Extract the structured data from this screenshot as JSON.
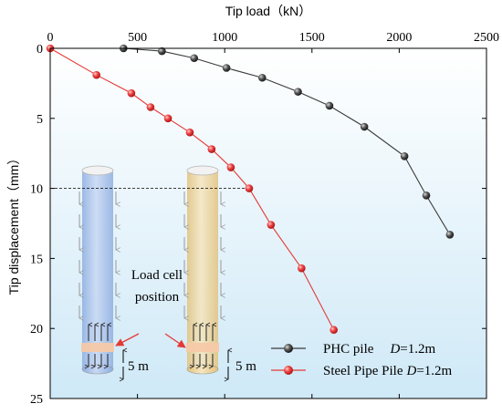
{
  "chart_data": {
    "type": "scatter",
    "title": "",
    "xlabel": "Tip load（kN）",
    "ylabel": "Tip displacement（mm）",
    "xlim": [
      0,
      2500
    ],
    "ylim": [
      0,
      25
    ],
    "x_ticks": [
      0,
      500,
      1000,
      1500,
      2000,
      2500
    ],
    "y_ticks": [
      0,
      5,
      10,
      15,
      20,
      25
    ],
    "x_axis_position": "top",
    "y_inverted": true,
    "grid": false,
    "reference_line_y": 10,
    "legend_position": "bottom-right",
    "series": [
      {
        "name": "PHC pile",
        "name_suffix_symbol": "D",
        "name_suffix_value": "=1.2m",
        "color": "#3a3a3a",
        "points": [
          {
            "x": 420,
            "y": 0.0
          },
          {
            "x": 640,
            "y": 0.2
          },
          {
            "x": 825,
            "y": 0.7
          },
          {
            "x": 1010,
            "y": 1.4
          },
          {
            "x": 1215,
            "y": 2.1
          },
          {
            "x": 1420,
            "y": 3.1
          },
          {
            "x": 1600,
            "y": 4.1
          },
          {
            "x": 1800,
            "y": 5.6
          },
          {
            "x": 2030,
            "y": 7.7
          },
          {
            "x": 2155,
            "y": 10.5
          },
          {
            "x": 2290,
            "y": 13.3
          }
        ]
      },
      {
        "name": "Steel Pipe Pile",
        "name_suffix_symbol": "D",
        "name_suffix_value": "=1.2m",
        "color": "#e53935",
        "points": [
          {
            "x": 0,
            "y": 0.0
          },
          {
            "x": 265,
            "y": 1.9
          },
          {
            "x": 465,
            "y": 3.2
          },
          {
            "x": 575,
            "y": 4.2
          },
          {
            "x": 675,
            "y": 5.0
          },
          {
            "x": 800,
            "y": 6.0
          },
          {
            "x": 925,
            "y": 7.2
          },
          {
            "x": 1035,
            "y": 8.5
          },
          {
            "x": 1140,
            "y": 10.0
          },
          {
            "x": 1265,
            "y": 12.6
          },
          {
            "x": 1440,
            "y": 15.7
          },
          {
            "x": 1625,
            "y": 20.1
          }
        ]
      }
    ],
    "annotations": {
      "load_cell_label_line1": "Load cell",
      "load_cell_label_line2": "position",
      "pile_length_label_left": "5 m",
      "pile_length_label_right": "5 m"
    },
    "colors": {
      "background_top": "#ffffff",
      "background_bottom": "#cfe9f7",
      "pile_blue": "#a9c2ea",
      "pile_yellow": "#ecd6a0",
      "load_cell": "#f6c9a8",
      "arrow_red": "#e53935"
    }
  }
}
